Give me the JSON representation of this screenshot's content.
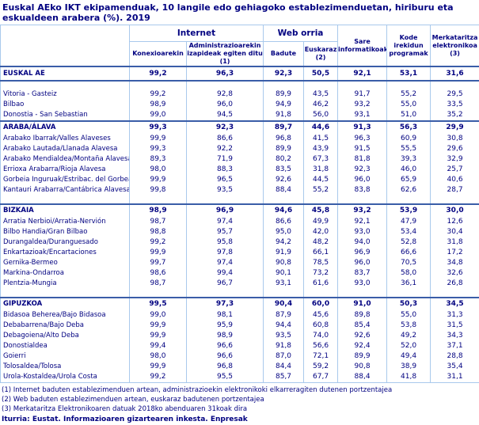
{
  "title": "Euskal AEko IKT ekipamenduak, 10 langile edo gehiagoko establezimenduetan, hiriburu eta eskualdeen arabera (%). 2019",
  "colors": {
    "text_navy": "#000080",
    "grid_light": "#a9c9ec",
    "grid_dark": "#3a5da8"
  },
  "table": {
    "group_headers": {
      "internet": "Internet",
      "web": "Web orria"
    },
    "columns": [
      "Konexioarekin",
      "Administrazioarekin izapideak egiten ditu (1)",
      "Badute",
      "Euskaraz (2)",
      "Sare informatikoak",
      "Kode irekidun programak",
      "Merkataritza elektronikoa (3)"
    ],
    "sections": [
      {
        "gap_before": false,
        "rows": [
          {
            "label": "EUSKAL AE",
            "type": "total",
            "values": [
              "99,2",
              "96,3",
              "92,3",
              "50,5",
              "92,1",
              "53,1",
              "31,6"
            ]
          }
        ]
      },
      {
        "gap_before": true,
        "rows": [
          {
            "label": "Vitoria - Gasteiz",
            "type": "city",
            "values": [
              "99,2",
              "92,8",
              "89,9",
              "43,5",
              "91,7",
              "55,2",
              "29,5"
            ]
          },
          {
            "label": "Bilbao",
            "type": "city",
            "values": [
              "98,9",
              "96,0",
              "94,9",
              "46,2",
              "93,2",
              "55,0",
              "33,5"
            ]
          },
          {
            "label": "Donostia - San Sebastian",
            "type": "city",
            "values": [
              "99,0",
              "94,5",
              "91,8",
              "56,0",
              "93,1",
              "51,0",
              "35,2"
            ]
          }
        ]
      },
      {
        "gap_before": false,
        "rows": [
          {
            "label": "ARABA/ÁLAVA",
            "type": "province",
            "values": [
              "99,3",
              "92,3",
              "89,7",
              "44,6",
              "91,3",
              "56,3",
              "29,9"
            ]
          },
          {
            "label": "Arabako Ibarrak/Valles Alaveses",
            "type": "region",
            "values": [
              "99,9",
              "86,6",
              "96,8",
              "41,5",
              "96,3",
              "60,9",
              "30,8"
            ]
          },
          {
            "label": "Arabako Lautada/Llanada Alavesa",
            "type": "region",
            "values": [
              "99,3",
              "92,2",
              "89,9",
              "43,9",
              "91,5",
              "55,5",
              "29,6"
            ]
          },
          {
            "label": "Arabako Mendialdea/Montaña Alavesa",
            "type": "region",
            "values": [
              "89,3",
              "71,9",
              "80,2",
              "67,3",
              "81,8",
              "39,3",
              "32,9"
            ]
          },
          {
            "label": "Errioxa Arabarra/Rioja Alavesa",
            "type": "region",
            "values": [
              "98,0",
              "88,3",
              "83,5",
              "31,8",
              "92,3",
              "46,0",
              "25,7"
            ]
          },
          {
            "label": "Gorbeia Inguruak/Estribac. del Gorbea",
            "type": "region",
            "values": [
              "99,9",
              "96,5",
              "92,6",
              "44,5",
              "96,0",
              "65,9",
              "40,6"
            ]
          },
          {
            "label": "Kantauri Arabarra/Cantábrica Alavesa",
            "type": "region",
            "values": [
              "99,8",
              "93,5",
              "88,4",
              "55,2",
              "83,8",
              "62,6",
              "28,7"
            ]
          }
        ]
      },
      {
        "gap_before": true,
        "rows": [
          {
            "label": "BIZKAIA",
            "type": "province",
            "values": [
              "98,9",
              "96,9",
              "94,6",
              "45,8",
              "93,2",
              "53,9",
              "30,0"
            ]
          },
          {
            "label": "Arratia Nerbioi/Arratia-Nervión",
            "type": "region",
            "values": [
              "98,7",
              "97,4",
              "86,6",
              "49,9",
              "92,1",
              "47,9",
              "12,6"
            ]
          },
          {
            "label": "Bilbo Handia/Gran Bilbao",
            "type": "region",
            "values": [
              "98,8",
              "95,7",
              "95,0",
              "42,0",
              "93,0",
              "53,4",
              "30,4"
            ]
          },
          {
            "label": "Durangaldea/Duranguesado",
            "type": "region",
            "values": [
              "99,2",
              "95,8",
              "94,2",
              "48,2",
              "94,0",
              "52,8",
              "31,8"
            ]
          },
          {
            "label": "Enkartazioak/Encartaciones",
            "type": "region",
            "values": [
              "99,9",
              "97,8",
              "91,9",
              "66,1",
              "96,9",
              "66,6",
              "17,2"
            ]
          },
          {
            "label": "Gernika-Bermeo",
            "type": "region",
            "values": [
              "99,7",
              "97,4",
              "90,8",
              "78,5",
              "96,0",
              "70,5",
              "34,8"
            ]
          },
          {
            "label": "Markina-Ondarroa",
            "type": "region",
            "values": [
              "98,6",
              "99,4",
              "90,1",
              "73,2",
              "83,7",
              "58,0",
              "32,6"
            ]
          },
          {
            "label": "Plentzia-Mungia",
            "type": "region",
            "values": [
              "98,7",
              "96,7",
              "93,1",
              "61,6",
              "93,0",
              "36,1",
              "26,8"
            ]
          }
        ]
      },
      {
        "gap_before": true,
        "rows": [
          {
            "label": "GIPUZKOA",
            "type": "province",
            "values": [
              "99,5",
              "97,3",
              "90,4",
              "60,0",
              "91,0",
              "50,3",
              "34,5"
            ]
          },
          {
            "label": "Bidasoa Beherea/Bajo Bidasoa",
            "type": "region",
            "values": [
              "99,0",
              "98,1",
              "87,9",
              "45,6",
              "89,8",
              "55,0",
              "31,3"
            ]
          },
          {
            "label": "Debabarrena/Bajo Deba",
            "type": "region",
            "values": [
              "99,9",
              "95,9",
              "94,4",
              "60,8",
              "85,4",
              "53,8",
              "31,5"
            ]
          },
          {
            "label": "Debagoiena/Alto Deba",
            "type": "region",
            "values": [
              "99,9",
              "98,9",
              "93,5",
              "74,0",
              "92,6",
              "49,2",
              "34,3"
            ]
          },
          {
            "label": "Donostialdea",
            "type": "region",
            "values": [
              "99,4",
              "96,6",
              "91,8",
              "56,6",
              "92,4",
              "52,0",
              "37,1"
            ]
          },
          {
            "label": "Goierri",
            "type": "region",
            "values": [
              "98,0",
              "96,6",
              "87,0",
              "72,1",
              "89,9",
              "49,4",
              "28,8"
            ]
          },
          {
            "label": "Tolosaldea/Tolosa",
            "type": "region",
            "values": [
              "99,9",
              "96,8",
              "84,4",
              "59,2",
              "90,8",
              "38,9",
              "35,4"
            ]
          },
          {
            "label": "Urola-Kostaldea/Urola Costa",
            "type": "region",
            "values": [
              "99,2",
              "95,5",
              "85,7",
              "67,7",
              "88,4",
              "41,8",
              "31,1"
            ]
          }
        ]
      }
    ]
  },
  "footnotes": [
    "(1) Internet baduten establezimenduen artean, administrazioekin elektronikoki elkarreragiten dutenen portzentajea",
    "(2) Web baduten establezimenduen artean, euskaraz badutenen portzentajea",
    "(3) Merkataritza Elektronikoaren datuak 2018ko  abenduaren 31koak dira"
  ],
  "source": "Iturria: Eustat. Informazioaren gizartearen inkesta. Enpresak"
}
